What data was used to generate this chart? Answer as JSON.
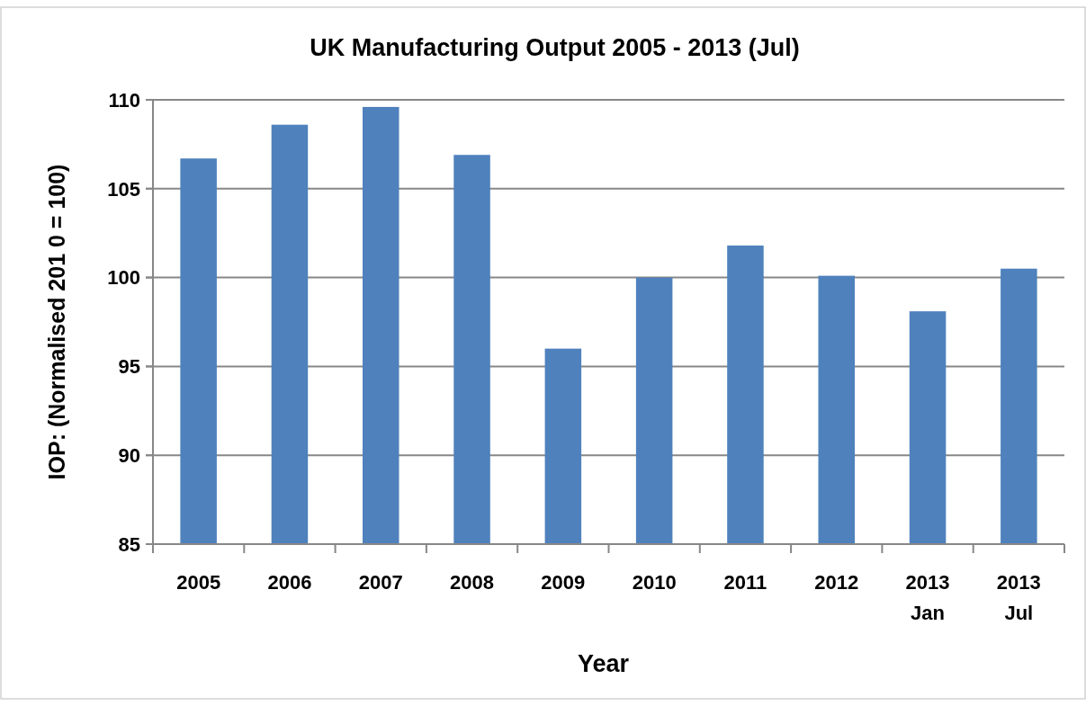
{
  "chart_data": {
    "type": "bar",
    "title": "UK Manufacturing Output 2005 - 2013 (Jul)",
    "xlabel": "Year",
    "ylabel": "IOP: (Normalised 201 0 = 100)",
    "categories": [
      "2005",
      "2006",
      "2007",
      "2008",
      "2009",
      "2010",
      "2011",
      "2012",
      "2013\nJan",
      "2013\nJul"
    ],
    "values": [
      106.7,
      108.6,
      109.6,
      106.9,
      96.0,
      100.0,
      101.8,
      100.1,
      98.1,
      100.5
    ],
    "color": "#4f81bd",
    "ylim": [
      85,
      110
    ],
    "yticks": [
      85,
      90,
      95,
      100,
      105,
      110
    ],
    "grid": "y"
  }
}
